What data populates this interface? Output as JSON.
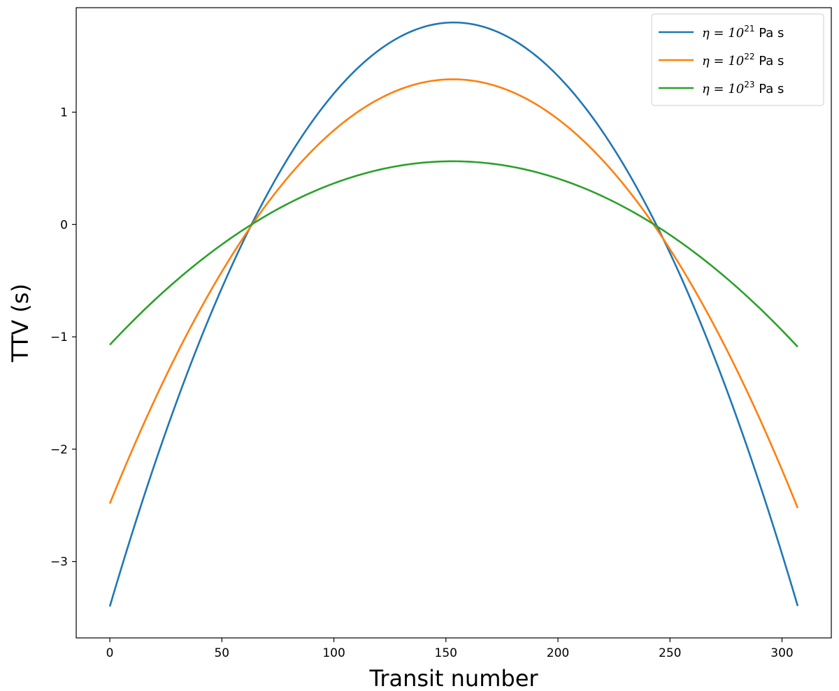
{
  "chart_data": {
    "type": "line",
    "xlabel": "Transit number",
    "ylabel": "TTV (s)",
    "xlim": [
      -15,
      322
    ],
    "ylim": [
      -3.68,
      1.93
    ],
    "xticks": [
      0,
      50,
      100,
      150,
      200,
      250,
      300
    ],
    "yticks": [
      -3,
      -2,
      -1,
      0,
      1
    ],
    "ytick_labels": [
      "−3",
      "−2",
      "−1",
      "0",
      "1"
    ],
    "grid": false,
    "legend_position": "top-right",
    "series": [
      {
        "name_prefix": "η = 10",
        "name_exponent": "21",
        "name_suffix": " Pa s",
        "color": "#1f77b4",
        "x": [
          0,
          25,
          50,
          64,
          75,
          100,
          125,
          153,
          175,
          200,
          225,
          242,
          250,
          275,
          307
        ],
        "y": [
          -3.43,
          -1.86,
          -0.56,
          0.0,
          0.55,
          1.19,
          1.63,
          1.74,
          1.66,
          1.33,
          0.73,
          0.0,
          -0.36,
          -1.29,
          -3.43
        ]
      },
      {
        "name_prefix": "η = 10",
        "name_exponent": "22",
        "name_suffix": " Pa s",
        "color": "#ff7f0e",
        "x": [
          0,
          25,
          50,
          64,
          75,
          100,
          125,
          153,
          175,
          200,
          225,
          242,
          250,
          275,
          307
        ],
        "y": [
          -2.5,
          -1.37,
          -0.42,
          0.0,
          0.37,
          0.88,
          1.16,
          1.26,
          1.2,
          0.94,
          0.47,
          0.0,
          -0.24,
          -1.1,
          -2.5
        ]
      },
      {
        "name_prefix": "η = 10",
        "name_exponent": "23",
        "name_suffix": " Pa s",
        "color": "#2ca02c",
        "x": [
          0,
          25,
          50,
          64,
          75,
          100,
          125,
          153,
          175,
          200,
          225,
          242,
          250,
          275,
          307
        ],
        "y": [
          -1.08,
          -0.58,
          -0.18,
          0.0,
          0.16,
          0.38,
          0.51,
          0.55,
          0.52,
          0.41,
          0.22,
          0.0,
          -0.11,
          -0.47,
          -1.08
        ]
      }
    ]
  }
}
